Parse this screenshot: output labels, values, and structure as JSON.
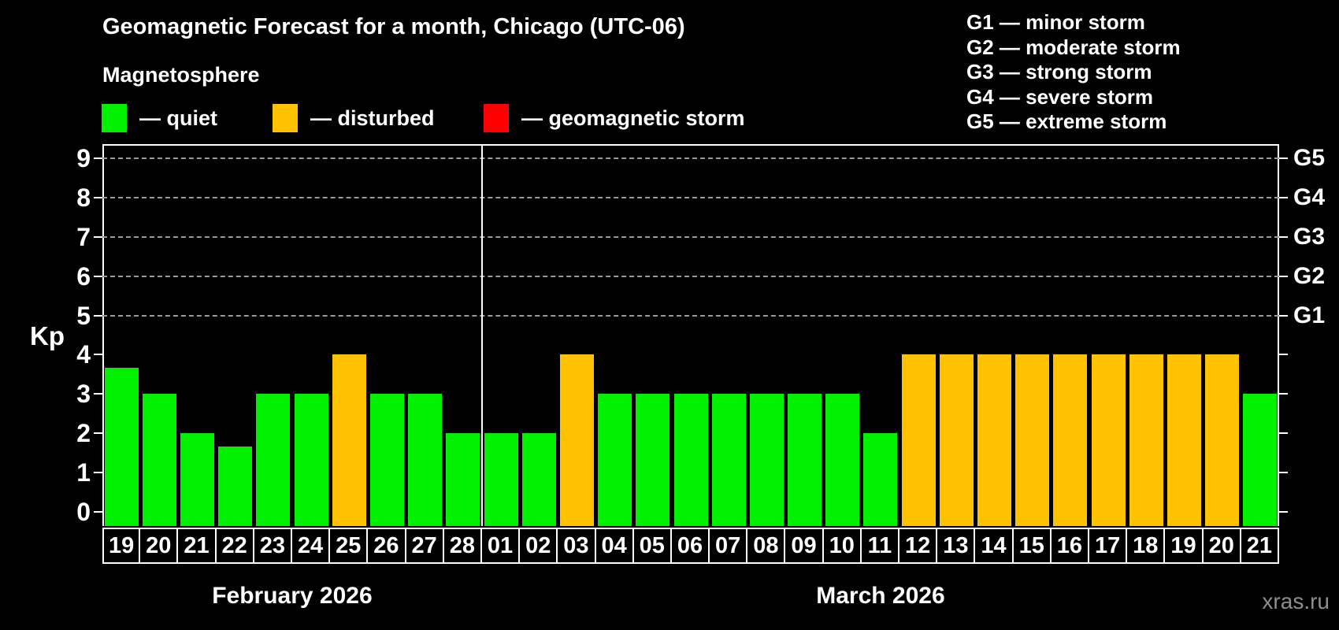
{
  "header": {
    "title": "Geomagnetic Forecast for a month, Chicago (UTC-06)",
    "subtitle": "Magnetosphere"
  },
  "legend": [
    {
      "name": "quiet",
      "label": "— quiet",
      "color": "#00f000"
    },
    {
      "name": "disturbed",
      "label": "— disturbed",
      "color": "#ffc200"
    },
    {
      "name": "storm",
      "label": "— geomagnetic storm",
      "color": "#ff0000"
    }
  ],
  "g_scale_legend": [
    "G1 — minor storm",
    "G2 — moderate storm",
    "G3 — strong storm",
    "G4 — severe storm",
    "G5 — extreme storm"
  ],
  "watermark": "xras.ru",
  "chart_data": {
    "type": "bar",
    "title": "Geomagnetic Forecast for a month, Chicago (UTC-06)",
    "subtitle": "Magnetosphere",
    "ylabel": "Kp",
    "ylim": [
      0,
      9
    ],
    "yticks": [
      0,
      1,
      2,
      3,
      4,
      5,
      6,
      7,
      8,
      9
    ],
    "gridlines_at": [
      5,
      6,
      7,
      8,
      9
    ],
    "grid": "dashed",
    "right_axis": [
      {
        "value": 5,
        "label": "G1"
      },
      {
        "value": 6,
        "label": "G2"
      },
      {
        "value": 7,
        "label": "G3"
      },
      {
        "value": 8,
        "label": "G4"
      },
      {
        "value": 9,
        "label": "G5"
      }
    ],
    "groups": [
      {
        "label": "February 2026",
        "count": 10
      },
      {
        "label": "March 2026",
        "count": 21
      }
    ],
    "colors": {
      "quiet": "#00f000",
      "disturbed": "#ffc200",
      "storm": "#ff0000"
    },
    "bars": [
      {
        "month": "February 2026",
        "day": "19",
        "kp": 3.67,
        "status": "quiet"
      },
      {
        "month": "February 2026",
        "day": "20",
        "kp": 3,
        "status": "quiet"
      },
      {
        "month": "February 2026",
        "day": "21",
        "kp": 2,
        "status": "quiet"
      },
      {
        "month": "February 2026",
        "day": "22",
        "kp": 1.67,
        "status": "quiet"
      },
      {
        "month": "February 2026",
        "day": "23",
        "kp": 3,
        "status": "quiet"
      },
      {
        "month": "February 2026",
        "day": "24",
        "kp": 3,
        "status": "quiet"
      },
      {
        "month": "February 2026",
        "day": "25",
        "kp": 4,
        "status": "disturbed"
      },
      {
        "month": "February 2026",
        "day": "26",
        "kp": 3,
        "status": "quiet"
      },
      {
        "month": "February 2026",
        "day": "27",
        "kp": 3,
        "status": "quiet"
      },
      {
        "month": "February 2026",
        "day": "28",
        "kp": 2,
        "status": "quiet"
      },
      {
        "month": "March 2026",
        "day": "01",
        "kp": 2,
        "status": "quiet"
      },
      {
        "month": "March 2026",
        "day": "02",
        "kp": 2,
        "status": "quiet"
      },
      {
        "month": "March 2026",
        "day": "03",
        "kp": 4,
        "status": "disturbed"
      },
      {
        "month": "March 2026",
        "day": "04",
        "kp": 3,
        "status": "quiet"
      },
      {
        "month": "March 2026",
        "day": "05",
        "kp": 3,
        "status": "quiet"
      },
      {
        "month": "March 2026",
        "day": "06",
        "kp": 3,
        "status": "quiet"
      },
      {
        "month": "March 2026",
        "day": "07",
        "kp": 3,
        "status": "quiet"
      },
      {
        "month": "March 2026",
        "day": "08",
        "kp": 3,
        "status": "quiet"
      },
      {
        "month": "March 2026",
        "day": "09",
        "kp": 3,
        "status": "quiet"
      },
      {
        "month": "March 2026",
        "day": "10",
        "kp": 3,
        "status": "quiet"
      },
      {
        "month": "March 2026",
        "day": "11",
        "kp": 2,
        "status": "quiet"
      },
      {
        "month": "March 2026",
        "day": "12",
        "kp": 4,
        "status": "disturbed"
      },
      {
        "month": "March 2026",
        "day": "13",
        "kp": 4,
        "status": "disturbed"
      },
      {
        "month": "March 2026",
        "day": "14",
        "kp": 4,
        "status": "disturbed"
      },
      {
        "month": "March 2026",
        "day": "15",
        "kp": 4,
        "status": "disturbed"
      },
      {
        "month": "March 2026",
        "day": "16",
        "kp": 4,
        "status": "disturbed"
      },
      {
        "month": "March 2026",
        "day": "17",
        "kp": 4,
        "status": "disturbed"
      },
      {
        "month": "March 2026",
        "day": "18",
        "kp": 4,
        "status": "disturbed"
      },
      {
        "month": "March 2026",
        "day": "19",
        "kp": 4,
        "status": "disturbed"
      },
      {
        "month": "March 2026",
        "day": "20",
        "kp": 4,
        "status": "disturbed"
      },
      {
        "month": "March 2026",
        "day": "21",
        "kp": 3,
        "status": "quiet"
      }
    ]
  }
}
